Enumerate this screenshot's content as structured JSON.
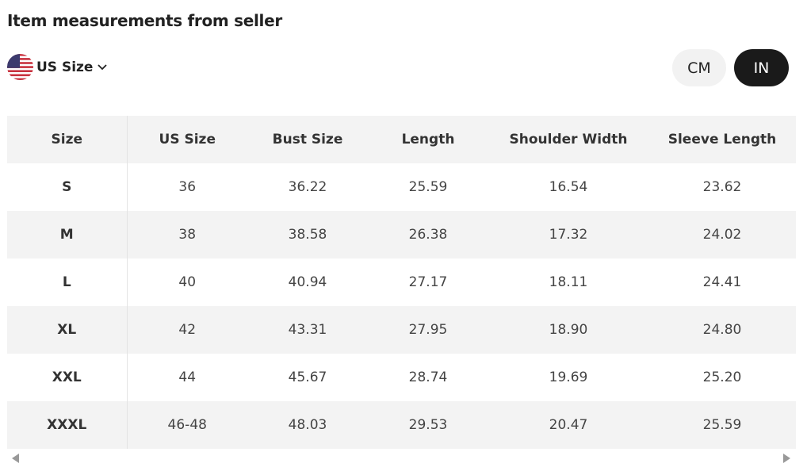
{
  "header": {
    "title": "Item measurements from seller"
  },
  "size_selector": {
    "label": "US Size"
  },
  "unit_toggle": {
    "options": [
      "CM",
      "IN"
    ]
  },
  "table": {
    "columns": [
      "Size",
      "US Size",
      "Bust Size",
      "Length",
      "Shoulder Width",
      "Sleeve Length"
    ],
    "rows": [
      [
        "S",
        "36",
        "36.22",
        "25.59",
        "16.54",
        "23.62"
      ],
      [
        "M",
        "38",
        "38.58",
        "26.38",
        "17.32",
        "24.02"
      ],
      [
        "L",
        "40",
        "40.94",
        "27.17",
        "18.11",
        "24.41"
      ],
      [
        "XL",
        "42",
        "43.31",
        "27.95",
        "18.90",
        "24.80"
      ],
      [
        "XXL",
        "44",
        "45.67",
        "28.74",
        "19.69",
        "25.20"
      ],
      [
        "XXXL",
        "46-48",
        "48.03",
        "29.53",
        "20.47",
        "25.59"
      ]
    ]
  }
}
